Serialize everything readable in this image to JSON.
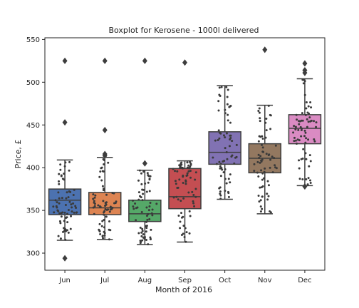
{
  "chart_data": {
    "type": "boxplot",
    "title": "Boxplot for Kerosene - 1000l delivered",
    "xlabel": "Month of 2016",
    "ylabel": "Price, £",
    "ylim": [
      280,
      552
    ],
    "yticks": [
      300,
      350,
      400,
      450,
      500,
      550
    ],
    "categories": [
      "Jun",
      "Jul",
      "Aug",
      "Sep",
      "Oct",
      "Nov",
      "Dec"
    ],
    "colors": [
      "#4c72b0",
      "#dd8452",
      "#55a868",
      "#c44e52",
      "#8172b3",
      "#937860",
      "#da8bc3"
    ],
    "boxes": [
      {
        "category": "Jun",
        "whisker_low": 315,
        "q1": 345,
        "median": 362,
        "q3": 375,
        "whisker_high": 409,
        "outliers": [
          525,
          453,
          294
        ]
      },
      {
        "category": "Jul",
        "whisker_low": 316,
        "q1": 345,
        "median": 353,
        "q3": 371,
        "whisker_high": 412,
        "outliers": [
          525,
          444,
          416,
          414
        ]
      },
      {
        "category": "Aug",
        "whisker_low": 310,
        "q1": 337,
        "median": 346,
        "q3": 362,
        "whisker_high": 397,
        "outliers": [
          525,
          405
        ]
      },
      {
        "category": "Sep",
        "whisker_low": 313,
        "q1": 352,
        "median": 366,
        "q3": 399,
        "whisker_high": 408,
        "outliers": [
          523
        ]
      },
      {
        "category": "Oct",
        "whisker_low": 363,
        "q1": 404,
        "median": 418,
        "q3": 442,
        "whisker_high": 496,
        "outliers": []
      },
      {
        "category": "Nov",
        "whisker_low": 346,
        "q1": 394,
        "median": 411,
        "q3": 428,
        "whisker_high": 473,
        "outliers": [
          538
        ]
      },
      {
        "category": "Dec",
        "whisker_low": 379,
        "q1": 428,
        "median": 446,
        "q3": 462,
        "whisker_high": 504,
        "outliers": [
          522,
          514,
          511,
          378
        ]
      }
    ],
    "swarm_dot_color": "#3a3a3a",
    "grid": false,
    "legend": "none"
  }
}
